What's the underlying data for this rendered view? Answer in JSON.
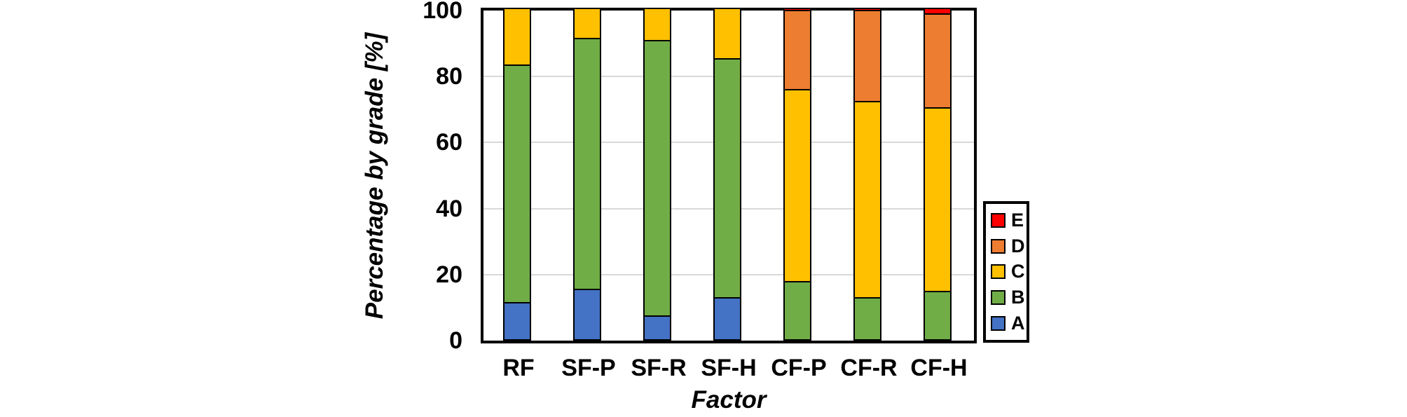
{
  "chart_data": {
    "type": "bar",
    "stacked": true,
    "orientation": "vertical",
    "title": "",
    "xlabel": "Factor",
    "ylabel": "Percentage by grade [%]",
    "ylim": [
      0,
      100
    ],
    "yticks": [
      0,
      20,
      40,
      60,
      80,
      100
    ],
    "grid": "horizontal-only",
    "gridline_color": "#D9D9D9",
    "legend_position": "right",
    "legend_order_top_to_bottom": [
      "E",
      "D",
      "C",
      "B",
      "A"
    ],
    "categories": [
      "RF",
      "SF-P",
      "SF-R",
      "SF-H",
      "CF-P",
      "CF-R",
      "CF-H"
    ],
    "series": [
      {
        "name": "A",
        "color": "#4472C4",
        "values": [
          11,
          15,
          7,
          12.5,
          0,
          0,
          0
        ]
      },
      {
        "name": "B",
        "color": "#70AD47",
        "values": [
          72,
          76,
          83.5,
          72.5,
          17.5,
          12.5,
          14.5
        ]
      },
      {
        "name": "C",
        "color": "#FFC000",
        "values": [
          17,
          9,
          9.5,
          15,
          58,
          59.5,
          55.5
        ]
      },
      {
        "name": "D",
        "color": "#ED7D31",
        "values": [
          0,
          0,
          0,
          0,
          24,
          27.5,
          28.5
        ]
      },
      {
        "name": "E",
        "color": "#FF0000",
        "values": [
          0,
          0,
          0,
          0,
          0.5,
          0.5,
          1.5
        ]
      }
    ],
    "axis_color": "#000000",
    "bar_border_color": "#000000"
  }
}
